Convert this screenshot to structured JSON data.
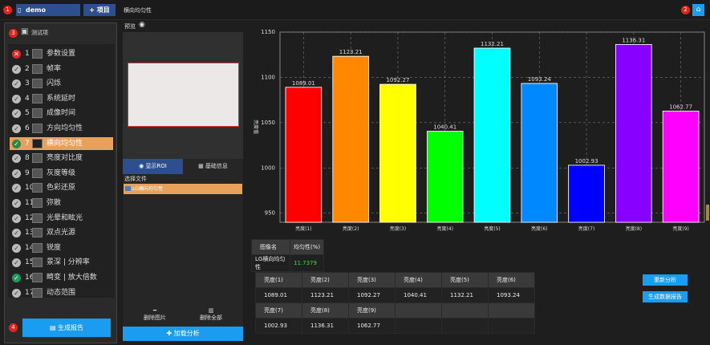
{
  "topbar": {
    "project_name": "demo",
    "add_project_label": "+ 项目",
    "page_title": "横向均匀性",
    "badge1": "1",
    "badge2": "2"
  },
  "sidebar": {
    "badge": "3",
    "header": "测试项",
    "items": [
      {
        "num": "1",
        "label": "参数设置",
        "status": "error"
      },
      {
        "num": "2",
        "label": "帧率",
        "status": "ok"
      },
      {
        "num": "3",
        "label": "闪烁",
        "status": "ok"
      },
      {
        "num": "4",
        "label": "系统延时",
        "status": "ok"
      },
      {
        "num": "5",
        "label": "成像时间",
        "status": "ok"
      },
      {
        "num": "6",
        "label": "方向均匀性",
        "status": "ok"
      },
      {
        "num": "7",
        "label": "横向均匀性",
        "status": "active"
      },
      {
        "num": "8",
        "label": "亮度对比度",
        "status": "ok"
      },
      {
        "num": "9",
        "label": "灰度等级",
        "status": "ok"
      },
      {
        "num": "10",
        "label": "色彩还原",
        "status": "ok"
      },
      {
        "num": "11",
        "label": "弥散",
        "status": "ok"
      },
      {
        "num": "12",
        "label": "光晕和眩光",
        "status": "ok"
      },
      {
        "num": "13",
        "label": "双点光源",
        "status": "ok"
      },
      {
        "num": "14",
        "label": "锐度",
        "status": "ok"
      },
      {
        "num": "15",
        "label": "景深 | 分辨率",
        "status": "ok"
      },
      {
        "num": "16",
        "label": "畸变 | 放大倍数",
        "status": "done"
      },
      {
        "num": "17",
        "label": "动态范围",
        "status": "ok"
      }
    ],
    "badge4": "4",
    "report_button": "生成报告"
  },
  "preview": {
    "label": "预览",
    "tab_roi": "显示ROI",
    "tab_info": "基础信息",
    "file_header": "选择文件",
    "file_item": "LG横向均匀性",
    "delete_image": "删除图片",
    "delete_all": "删除全部",
    "load_analysis": "加载分析"
  },
  "chart_data": {
    "type": "bar",
    "categories": [
      "亮度(1)",
      "亮度(2)",
      "亮度(3)",
      "亮度(4)",
      "亮度(5)",
      "亮度(6)",
      "亮度(7)",
      "亮度(8)",
      "亮度(9)"
    ],
    "values": [
      1089.01,
      1123.21,
      1092.27,
      1040.41,
      1132.21,
      1093.24,
      1002.93,
      1136.31,
      1062.77
    ],
    "labels": [
      "1089.01",
      "1123.21",
      "1092.27",
      "1040.41",
      "1132.21",
      "1093.24",
      "1002.93",
      "1136.31",
      "1062.77"
    ],
    "colors": [
      "#ff0000",
      "#ff8800",
      "#ffff00",
      "#00ff00",
      "#00ffff",
      "#0088ff",
      "#0000ff",
      "#8800ff",
      "#ff00ff"
    ],
    "ylabel": "亮度值",
    "ylim": [
      940,
      1150
    ],
    "yticks": [
      "950",
      "1000",
      "1050",
      "1100",
      "1150"
    ],
    "ytick_values": [
      950,
      1000,
      1050,
      1100,
      1150
    ],
    "grid": true
  },
  "summary": {
    "col1": "图像名",
    "col2": "均匀性(%)",
    "name": "LG横向均匀性",
    "value": "11.7379"
  },
  "values_table": {
    "headers1": [
      "亮度(1)",
      "亮度(2)",
      "亮度(3)",
      "亮度(4)",
      "亮度(5)",
      "亮度(6)"
    ],
    "row1": [
      "1089.01",
      "1123.21",
      "1092.27",
      "1040.41",
      "1132.21",
      "1093.24"
    ],
    "headers2": [
      "亮度(7)",
      "亮度(8)",
      "亮度(9)"
    ],
    "row2": [
      "1002.93",
      "1136.31",
      "1062.77"
    ]
  },
  "actions": {
    "reanalyze": "重新分析",
    "export": "生成数据报告"
  }
}
